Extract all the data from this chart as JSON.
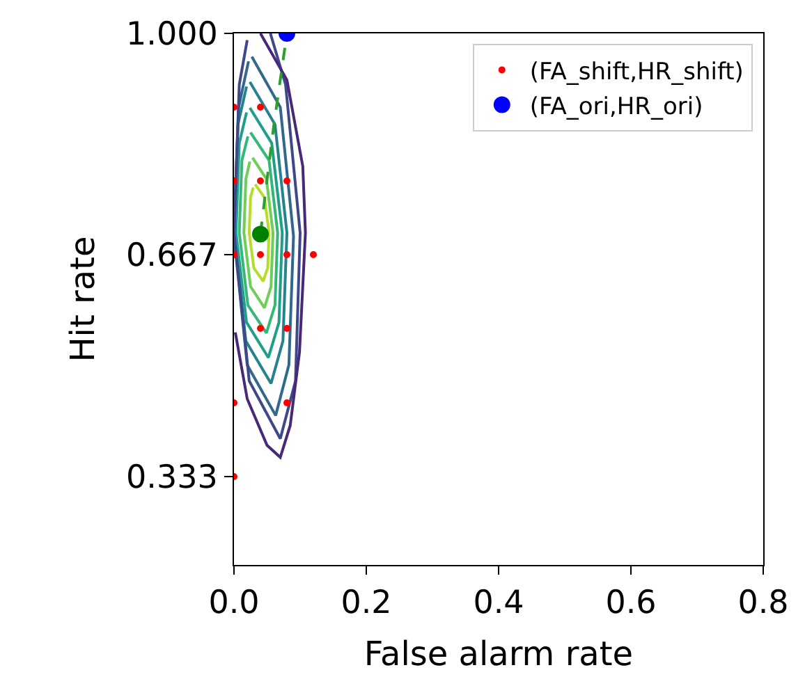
{
  "chart_data": {
    "type": "scatter",
    "xlabel": "False alarm rate",
    "ylabel": "Hit rate",
    "xlim": [
      0,
      0.8
    ],
    "xticks": [
      {
        "value": 0,
        "label": "0.0"
      },
      0.2,
      0.4,
      0.6,
      0.8
    ],
    "ylim": [
      0.2,
      1.0
    ],
    "yticks": [
      0.333,
      0.667,
      {
        "value": 1.0,
        "label": "1.000"
      }
    ],
    "legend": "top right",
    "series": [
      {
        "type": "line",
        "color": "#b5de2b",
        "x": [
          0.032,
          0.046,
          0.053,
          0.051,
          0.044,
          0.03,
          0.023,
          0.025,
          0.029
        ],
        "values": [
          0.773,
          0.753,
          0.7,
          0.647,
          0.627,
          0.647,
          0.7,
          0.753,
          0.768
        ]
      },
      {
        "type": "line",
        "color": "#6ece58",
        "x": [
          0.028,
          0.049,
          0.059,
          0.056,
          0.046,
          0.025,
          0.015,
          0.018,
          0.024
        ],
        "values": [
          0.813,
          0.781,
          0.7,
          0.619,
          0.587,
          0.619,
          0.7,
          0.781,
          0.807
        ]
      },
      {
        "type": "line",
        "color": "#35b779",
        "x": [
          0.025,
          0.053,
          0.066,
          0.062,
          0.049,
          0.021,
          0.008,
          0.012,
          0.021
        ],
        "values": [
          0.851,
          0.809,
          0.7,
          0.591,
          0.549,
          0.591,
          0.7,
          0.809,
          0.845
        ]
      },
      {
        "type": "line",
        "color": "#1f9e89",
        "x": [
          0.024,
          0.057,
          0.073,
          0.068,
          0.052,
          0.019,
          0.003,
          0.008,
          0.019
        ],
        "values": [
          0.888,
          0.835,
          0.7,
          0.565,
          0.512,
          0.565,
          0.7,
          0.835,
          0.881
        ]
      },
      {
        "type": "line",
        "color": "#26828e",
        "x": [
          0.024,
          0.062,
          0.08,
          0.074,
          0.056,
          0.018,
          0.0,
          0.006,
          0.019
        ],
        "values": [
          0.927,
          0.863,
          0.7,
          0.537,
          0.473,
          0.537,
          0.7,
          0.863,
          0.92
        ]
      },
      {
        "type": "line",
        "color": "#31688e",
        "x": [
          0.027,
          0.07,
          0.09,
          0.083,
          0.063,
          0.02,
          0.0,
          0.007,
          0.022
        ],
        "values": [
          0.965,
          0.889,
          0.695,
          0.501,
          0.425,
          0.501,
          0.695,
          0.889,
          0.958
        ]
      },
      {
        "type": "line",
        "color": "#3e4989",
        "x": [
          0.055,
          0.078,
          0.1,
          0.093,
          0.07,
          0.023,
          0.0,
          0.008,
          0.02
        ],
        "values": [
          1.0,
          0.923,
          0.7,
          0.477,
          0.39,
          0.477,
          0.7,
          0.923,
          0.99
        ]
      },
      {
        "type": "line",
        "color": "#482878",
        "x": [
          0.04,
          0.08,
          0.104,
          0.108,
          0.099,
          0.085,
          0.07,
          0.05,
          0.02,
          0.002
        ],
        "values": [
          1.0,
          0.93,
          0.8,
          0.7,
          0.52,
          0.41,
          0.362,
          0.38,
          0.45,
          0.55
        ]
      },
      {
        "type": "line",
        "color": "#2ca02c",
        "line_style": "dashed",
        "x": [
          0.04,
          0.05,
          0.06,
          0.07,
          0.08
        ],
        "values": [
          0.698,
          0.78,
          0.86,
          0.93,
          1.0
        ]
      },
      {
        "name": "(FA_shift,HR_shift)",
        "color": "#ff0000",
        "marker": "circle",
        "x": [
          0,
          0.04,
          0,
          0.04,
          0.08,
          0,
          0.04,
          0.08,
          0.12,
          0.04,
          0.08,
          0,
          0.08,
          0
        ],
        "values": [
          0.889,
          0.889,
          0.778,
          0.778,
          0.778,
          0.667,
          0.667,
          0.667,
          0.667,
          0.556,
          0.556,
          0.444,
          0.444,
          0.333
        ]
      },
      {
        "name": "(FA_ori,HR_ori)",
        "color": "#0000ff",
        "marker": "circle",
        "x": [
          0.08
        ],
        "values": [
          1.0
        ]
      },
      {
        "color": "#008000",
        "marker": "circle",
        "x": [
          0.04
        ],
        "values": [
          0.698
        ]
      }
    ]
  }
}
